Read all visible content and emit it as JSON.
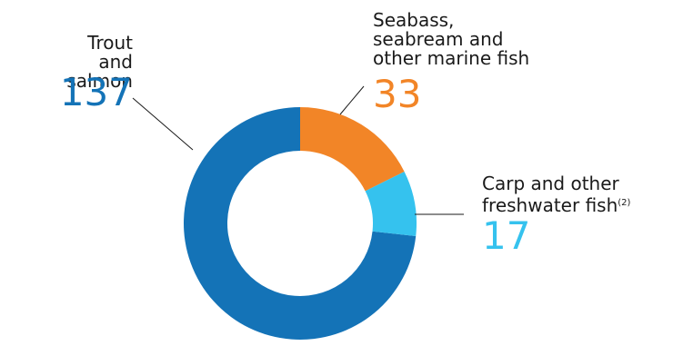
{
  "chart_data": {
    "type": "pie",
    "subtype": "donut",
    "categories": [
      "Trout and salmon",
      "Seabass, seabream and other marine fish",
      "Carp and other freshwater fish"
    ],
    "values": [
      137,
      33,
      17
    ],
    "colors": [
      "#1473b7",
      "#f28527",
      "#35c2ee"
    ],
    "labels": {
      "trout": {
        "line1": "Trout",
        "line2": "and salmon",
        "value": "137"
      },
      "seabass": {
        "line1": "Seabass,",
        "line2": "seabream and",
        "line3": "other marine fish",
        "value": "33"
      },
      "carp": {
        "line1": "Carp and other",
        "line2": "freshwater fish",
        "note": "(2)",
        "value": "17"
      }
    }
  }
}
